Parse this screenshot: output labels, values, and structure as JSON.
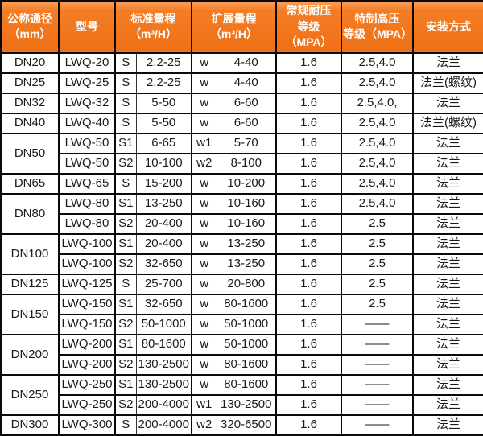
{
  "colors": {
    "header_background": "#f0741c",
    "header_highlight": "#f9a05c",
    "header_text": "#ffffff",
    "grid_border": "#0a0a0a",
    "body_text": "#1a1a1a",
    "body_background": "#ffffff"
  },
  "table": {
    "headers": [
      "公称通径\n（mm）",
      "型号",
      "标准量程\n（m³/H）",
      "扩展量程\n（m³/H）",
      "常规耐压\n等级（MPA）",
      "特制高压\n等级（MPA）",
      "安装方式"
    ],
    "rows": [
      {
        "dn": "DN20",
        "dn_span": 1,
        "model": "LWQ-20",
        "s_code": "S",
        "s_range": "2.2-25",
        "w_code": "w",
        "w_range": "4-40",
        "pressure_regular": "1.6",
        "pressure_high": "2.5,4.0",
        "install": "法兰"
      },
      {
        "dn": "DN25",
        "dn_span": 1,
        "model": "LWQ-25",
        "s_code": "S",
        "s_range": "2.2-25",
        "w_code": "w",
        "w_range": "4-40",
        "pressure_regular": "1.6",
        "pressure_high": "2.5,4.0",
        "install": "法兰(螺纹)"
      },
      {
        "dn": "DN32",
        "dn_span": 1,
        "model": "LWQ-32",
        "s_code": "S",
        "s_range": "5-50",
        "w_code": "w",
        "w_range": "6-60",
        "pressure_regular": "1.6",
        "pressure_high": "2.5,4.0,",
        "install": "法兰"
      },
      {
        "dn": "DN40",
        "dn_span": 1,
        "model": "LWQ-40",
        "s_code": "S",
        "s_range": "5-50",
        "w_code": "w",
        "w_range": "6-60",
        "pressure_regular": "1.6",
        "pressure_high": "2.5,4.0",
        "install": "法兰(螺纹)"
      },
      {
        "dn": "DN50",
        "dn_span": 2,
        "model": "LWQ-50",
        "s_code": "S1",
        "s_range": "6-65",
        "w_code": "w1",
        "w_range": "5-70",
        "pressure_regular": "1.6",
        "pressure_high": "2.5,4.0",
        "install": "法兰"
      },
      {
        "model": "LWQ-50",
        "s_code": "S2",
        "s_range": "10-100",
        "w_code": "w2",
        "w_range": "8-100",
        "pressure_regular": "1.6",
        "pressure_high": "2.5,4.0",
        "install": "法兰"
      },
      {
        "dn": "DN65",
        "dn_span": 1,
        "model": "LWQ-65",
        "s_code": "S",
        "s_range": "15-200",
        "w_code": "w",
        "w_range": "10-200",
        "pressure_regular": "1.6",
        "pressure_high": "2.5,4.0",
        "install": "法兰"
      },
      {
        "dn": "DN80",
        "dn_span": 2,
        "model": "LWQ-80",
        "s_code": "S1",
        "s_range": "13-250",
        "w_code": "w",
        "w_range": "10-160",
        "pressure_regular": "1.6",
        "pressure_high": "2.5,4.0",
        "install": "法兰"
      },
      {
        "model": "LWQ-80",
        "s_code": "S2",
        "s_range": "20-400",
        "w_code": "w",
        "w_range": "10-160",
        "pressure_regular": "1.6",
        "pressure_high": "2.5",
        "install": "法兰"
      },
      {
        "dn": "DN100",
        "dn_span": 2,
        "model": "LWQ-100",
        "s_code": "S1",
        "s_range": "20-400",
        "w_code": "w",
        "w_range": "13-250",
        "pressure_regular": "1.6",
        "pressure_high": "2.5",
        "install": "法兰"
      },
      {
        "model": "LWQ-100",
        "s_code": "S2",
        "s_range": "32-650",
        "w_code": "w",
        "w_range": "13-250",
        "pressure_regular": "1.6",
        "pressure_high": "2.5",
        "install": "法兰"
      },
      {
        "dn": "DN125",
        "dn_span": 1,
        "model": "LWQ-125",
        "s_code": "S",
        "s_range": "25-700",
        "w_code": "w",
        "w_range": "20-800",
        "pressure_regular": "1.6",
        "pressure_high": "2.5",
        "install": "法兰"
      },
      {
        "dn": "DN150",
        "dn_span": 2,
        "model": "LWQ-150",
        "s_code": "S1",
        "s_range": "32-650",
        "w_code": "w",
        "w_range": "80-1600",
        "pressure_regular": "1.6",
        "pressure_high": "2.5",
        "install": "法兰"
      },
      {
        "model": "LWQ-150",
        "s_code": "S2",
        "s_range": "50-1000",
        "w_code": "w",
        "w_range": "50-1000",
        "pressure_regular": "1.6",
        "pressure_high": "——",
        "install": "法兰"
      },
      {
        "dn": "DN200",
        "dn_span": 2,
        "model": "LWQ-200",
        "s_code": "S1",
        "s_range": "80-1600",
        "w_code": "w",
        "w_range": "50-1000",
        "pressure_regular": "1.6",
        "pressure_high": "——",
        "install": "法兰"
      },
      {
        "model": "LWQ-200",
        "s_code": "S2",
        "s_range": "130-2500",
        "w_code": "w",
        "w_range": "80-1600",
        "pressure_regular": "1.6",
        "pressure_high": "——",
        "install": "法兰"
      },
      {
        "dn": "DN250",
        "dn_span": 2,
        "model": "LWQ-250",
        "s_code": "S1",
        "s_range": "130-2500",
        "w_code": "w",
        "w_range": "80-1600",
        "pressure_regular": "1.6",
        "pressure_high": "——",
        "install": "法兰"
      },
      {
        "model": "LWQ-250",
        "s_code": "S2",
        "s_range": "200-4000",
        "w_code": "w1",
        "w_range": "130-2500",
        "pressure_regular": "1.6",
        "pressure_high": "——",
        "install": "法兰"
      },
      {
        "dn": "DN300",
        "dn_span": 1,
        "model": "LWQ-300",
        "s_code": "S",
        "s_range": "200-4000",
        "w_code": "w2",
        "w_range": "320-6500",
        "pressure_regular": "1.6",
        "pressure_high": "——",
        "install": "法兰"
      }
    ]
  }
}
